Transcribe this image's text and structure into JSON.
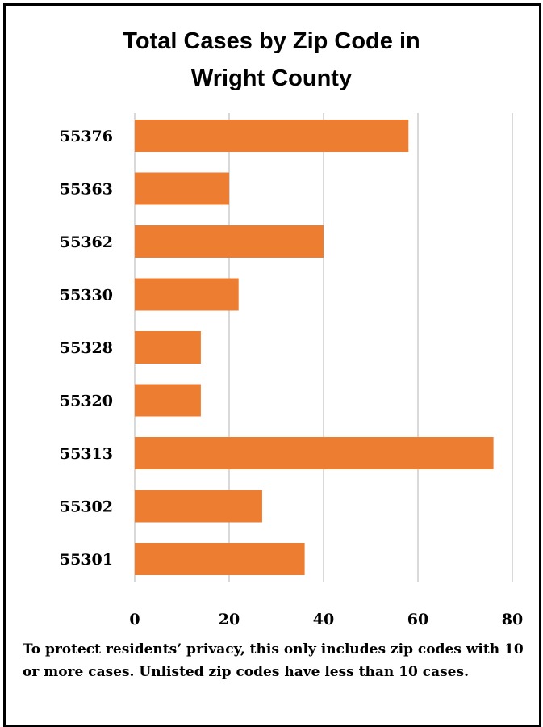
{
  "chart_data": {
    "type": "bar",
    "orientation": "horizontal",
    "title_lines": [
      "Total Cases by Zip Code in",
      "Wright County"
    ],
    "categories": [
      "55376",
      "55363",
      "55362",
      "55330",
      "55328",
      "55320",
      "55313",
      "55302",
      "55301"
    ],
    "values": [
      58,
      20,
      40,
      22,
      14,
      14,
      76,
      27,
      36
    ],
    "xlim": [
      0,
      80
    ],
    "xticks": [
      "0",
      "20",
      "40",
      "60",
      "80"
    ],
    "grid": true,
    "bar_color": "#ED7D31",
    "grid_color": "#D9D9D9"
  },
  "footnote": "To protect residents’ privacy, this only includes zip codes with 10 or more cases. Unlisted zip codes have less than 10 cases."
}
